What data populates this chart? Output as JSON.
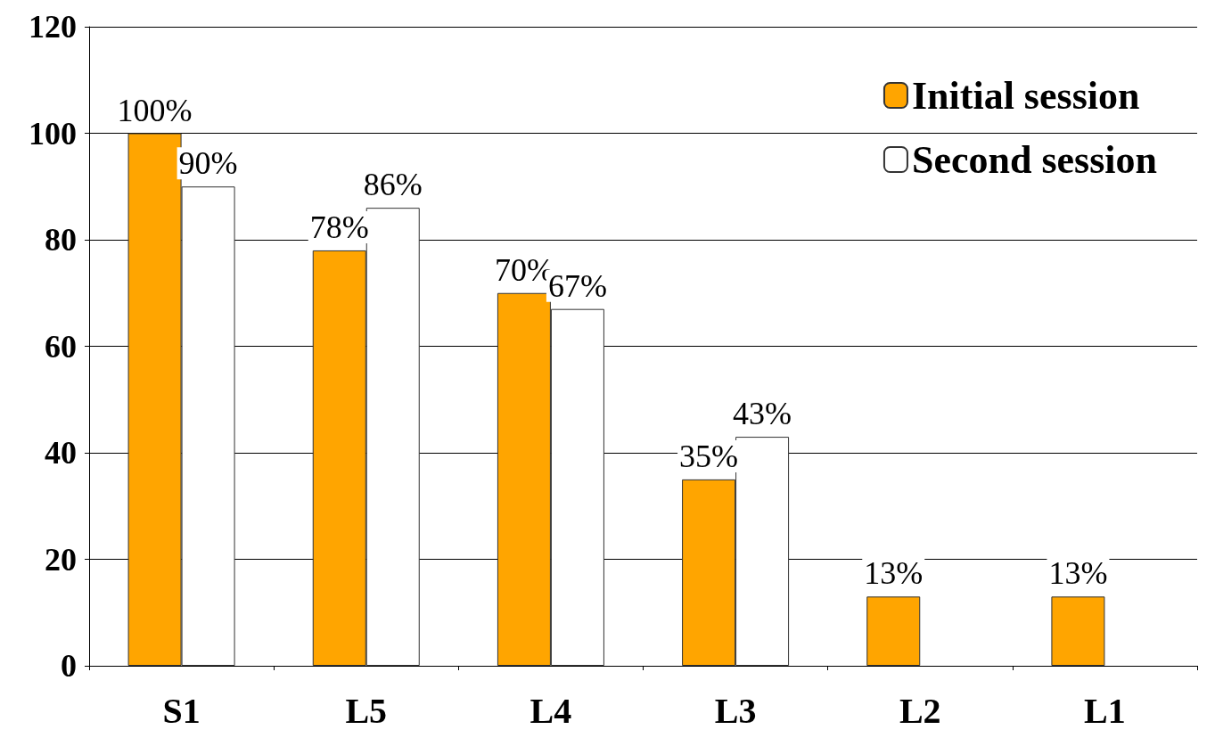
{
  "chart_data": {
    "type": "bar",
    "categories": [
      "S1",
      "L5",
      "L4",
      "L3",
      "L2",
      "L1"
    ],
    "series": [
      {
        "name": "Initial session",
        "color": "#ffa500",
        "values": [
          100,
          78,
          70,
          35,
          13,
          13
        ],
        "value_labels": [
          "100%",
          "78%",
          "70%",
          "35%",
          "13%",
          "13%"
        ]
      },
      {
        "name": "Second session",
        "color": "#ffffff",
        "values": [
          90,
          86,
          67,
          43,
          null,
          null
        ],
        "value_labels": [
          "90%",
          "86%",
          "67%",
          "43%",
          null,
          null
        ]
      }
    ],
    "ylim": [
      0,
      120
    ],
    "yticks": [
      0,
      20,
      40,
      60,
      80,
      100,
      120
    ],
    "grid": "y",
    "legend": "top right"
  }
}
